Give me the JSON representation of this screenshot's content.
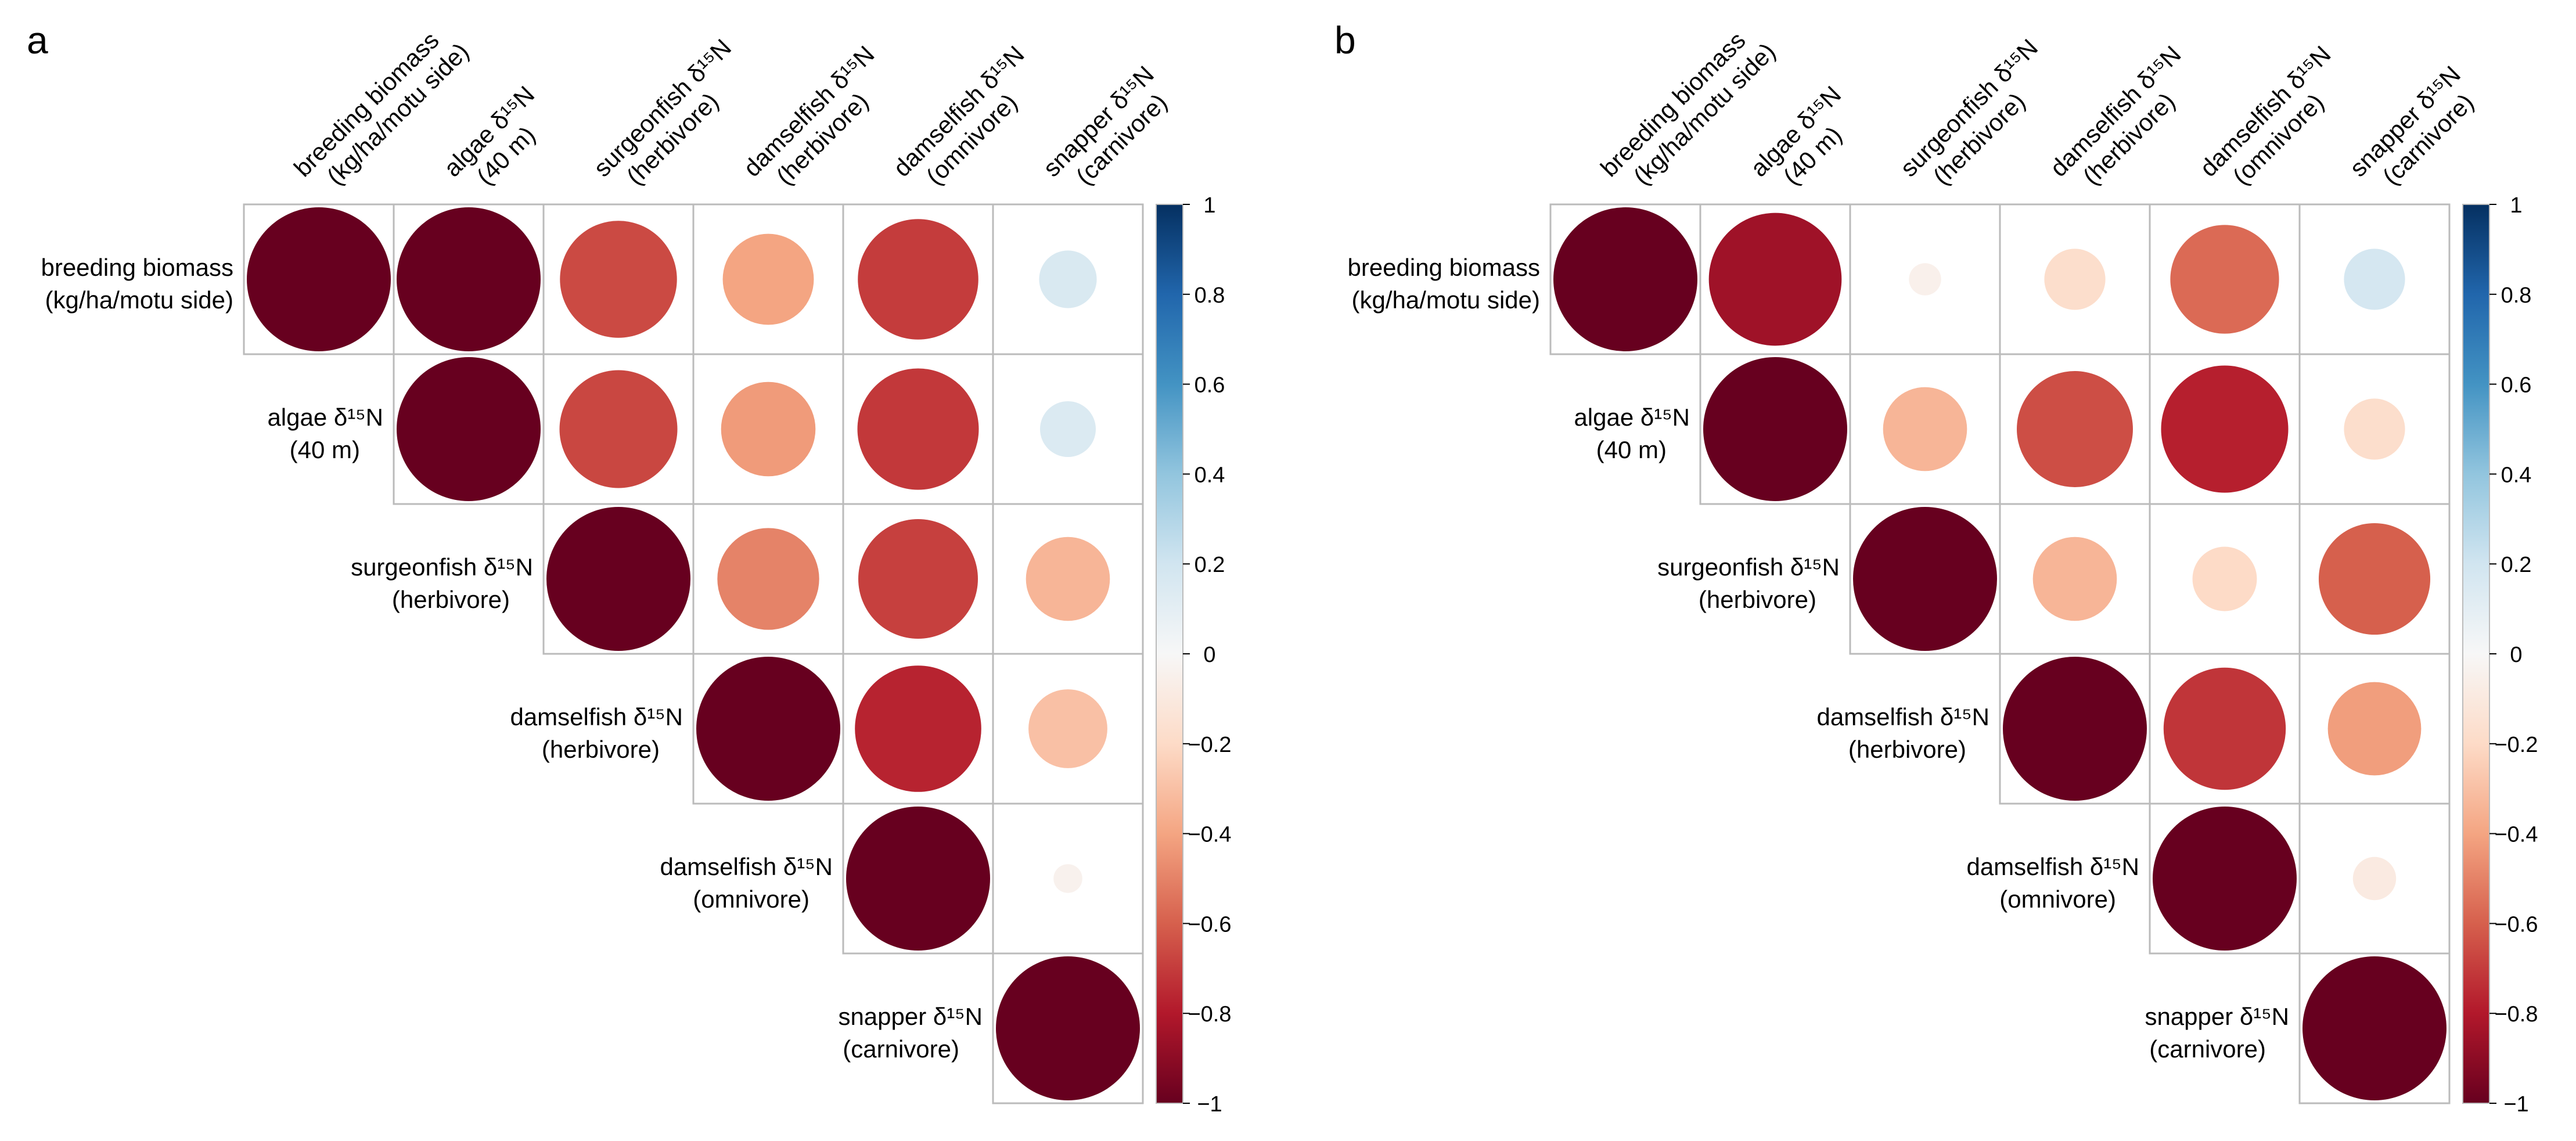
{
  "chart_data": [
    {
      "type": "heatmap",
      "panel_label": "a",
      "variables": [
        [
          "breeding biomass",
          "(kg/ha/motu side)"
        ],
        [
          "algae δ¹⁵N",
          "(40 m)"
        ],
        [
          "surgeonfish δ¹⁵N",
          "(herbivore)"
        ],
        [
          "damselfish δ¹⁵N",
          "(herbivore)"
        ],
        [
          "damselfish δ¹⁵N",
          "(omnivore)"
        ],
        [
          "snapper δ¹⁵N",
          "(carnivore)"
        ]
      ],
      "matrix": [
        [
          1,
          1,
          0.66,
          0.4,
          0.7,
          -0.16
        ],
        [
          null,
          1,
          0.67,
          0.43,
          0.71,
          -0.15
        ],
        [
          null,
          null,
          1,
          0.5,
          0.69,
          0.34
        ],
        [
          null,
          null,
          null,
          1,
          0.77,
          0.3
        ],
        [
          null,
          null,
          null,
          null,
          1,
          0.04
        ],
        [
          null,
          null,
          null,
          null,
          null,
          1
        ]
      ],
      "colorbar": {
        "ticks": [
          "1",
          "0.8",
          "0.6",
          "0.4",
          "0.2",
          "0",
          "−0.2",
          "−0.4",
          "−0.6",
          "−0.8",
          "−1"
        ],
        "range": [
          -1,
          1
        ]
      }
    },
    {
      "type": "heatmap",
      "panel_label": "b",
      "variables": [
        [
          "breeding biomass",
          "(kg/ha/motu side)"
        ],
        [
          "algae δ¹⁵N",
          "(40 m)"
        ],
        [
          "surgeonfish δ¹⁵N",
          "(herbivore)"
        ],
        [
          "damselfish δ¹⁵N",
          "(herbivore)"
        ],
        [
          "damselfish δ¹⁵N",
          "(omnivore)"
        ],
        [
          "snapper δ¹⁵N",
          "(carnivore)"
        ]
      ],
      "matrix": [
        [
          1,
          0.85,
          0.05,
          0.18,
          0.57,
          -0.18
        ],
        [
          null,
          1,
          0.34,
          0.65,
          0.78,
          0.18
        ],
        [
          null,
          null,
          1,
          0.34,
          0.2,
          0.6
        ],
        [
          null,
          null,
          null,
          1,
          0.72,
          0.42
        ],
        [
          null,
          null,
          null,
          null,
          1,
          0.09
        ],
        [
          null,
          null,
          null,
          null,
          null,
          1
        ]
      ],
      "colorbar": {
        "ticks": [
          "1",
          "0.8",
          "0.6",
          "0.4",
          "0.2",
          "0",
          "−0.2",
          "−0.4",
          "−0.6",
          "−0.8",
          "−1"
        ],
        "range": [
          -1,
          1
        ]
      }
    }
  ],
  "colors": {
    "scale": [
      "#67001f",
      "#b2182b",
      "#d6604d",
      "#f4a582",
      "#fddbc7",
      "#f7f7f7",
      "#d1e5f0",
      "#92c5de",
      "#4393c3",
      "#2166ac",
      "#053061"
    ],
    "grid": "#bbbbbb",
    "text": "#000000"
  }
}
